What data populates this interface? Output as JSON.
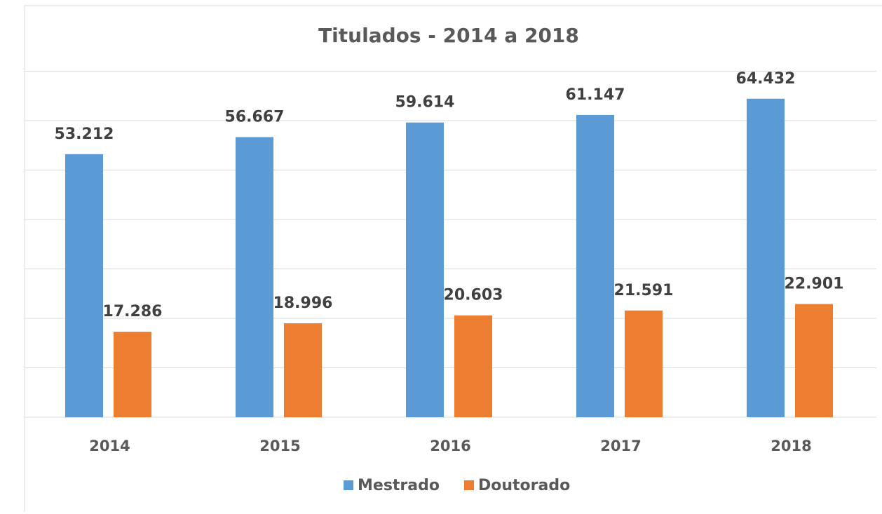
{
  "chart_data": {
    "type": "bar",
    "title": "Titulados - 2014 a 2018",
    "categories": [
      "2014",
      "2015",
      "2016",
      "2017",
      "2018"
    ],
    "series": [
      {
        "name": "Mestrado",
        "color": "#5b9bd5",
        "values": [
          53212,
          56667,
          59614,
          61147,
          64432
        ],
        "value_labels": [
          "53.212",
          "56.667",
          "59.614",
          "61.147",
          "64.432"
        ]
      },
      {
        "name": "Doutorado",
        "color": "#ed7d31",
        "values": [
          17286,
          18996,
          20603,
          21591,
          22901
        ],
        "value_labels": [
          "17.286",
          "18.996",
          "20.603",
          "21.591",
          "22.901"
        ]
      }
    ],
    "ylim": [
      0,
      70000
    ],
    "yticks": [
      0,
      10000,
      20000,
      30000,
      40000,
      50000,
      60000,
      70000
    ],
    "grid": true,
    "legend": "bottom"
  }
}
